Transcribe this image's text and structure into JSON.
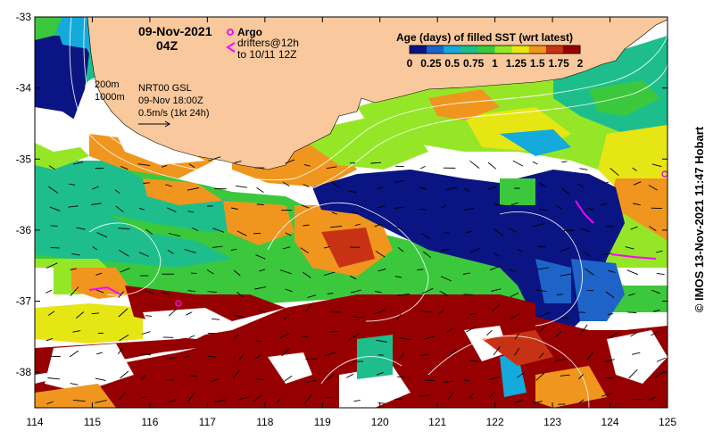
{
  "header": {
    "date": "09-Nov-2021",
    "time": "04Z",
    "argo_label": "Argo",
    "drifters_line1": "drifters@12h",
    "drifters_line2": "to 10/11 12Z"
  },
  "colorbar": {
    "title": "Age (days) of filled SST (wrt latest)",
    "ticks": [
      "0",
      "0.25",
      "0.5",
      "0.75",
      "1",
      "1.25",
      "1.5",
      "1.75",
      "2"
    ],
    "colors": [
      "#0a1482",
      "#1e64c8",
      "#14aadc",
      "#1ebe8c",
      "#3cc83c",
      "#96e628",
      "#e6e614",
      "#f0961e",
      "#c83214",
      "#960000"
    ]
  },
  "legend": {
    "depth_200": "200m",
    "depth_1000": "1000m",
    "product": "NRT00 GSL",
    "product_time": "09-Nov 18:00Z",
    "scale": "0.5m/s (1kt 24h)"
  },
  "axes": {
    "x_ticks": [
      "114",
      "115",
      "116",
      "117",
      "118",
      "119",
      "120",
      "121",
      "122",
      "123",
      "124",
      "125"
    ],
    "y_ticks": [
      "-33",
      "-34",
      "-35",
      "-36",
      "-37",
      "-38"
    ],
    "lon_range": [
      114,
      125
    ],
    "lat_range": [
      -38.5,
      -33
    ]
  },
  "colors": {
    "land": "#f9c89c",
    "no_data": "#ffffff",
    "frame": "#000000",
    "argo": "#e60ce6",
    "drifter": "#ff00ff"
  },
  "credit": "© IMOS 13-Nov-2021 11:47 Hobart"
}
